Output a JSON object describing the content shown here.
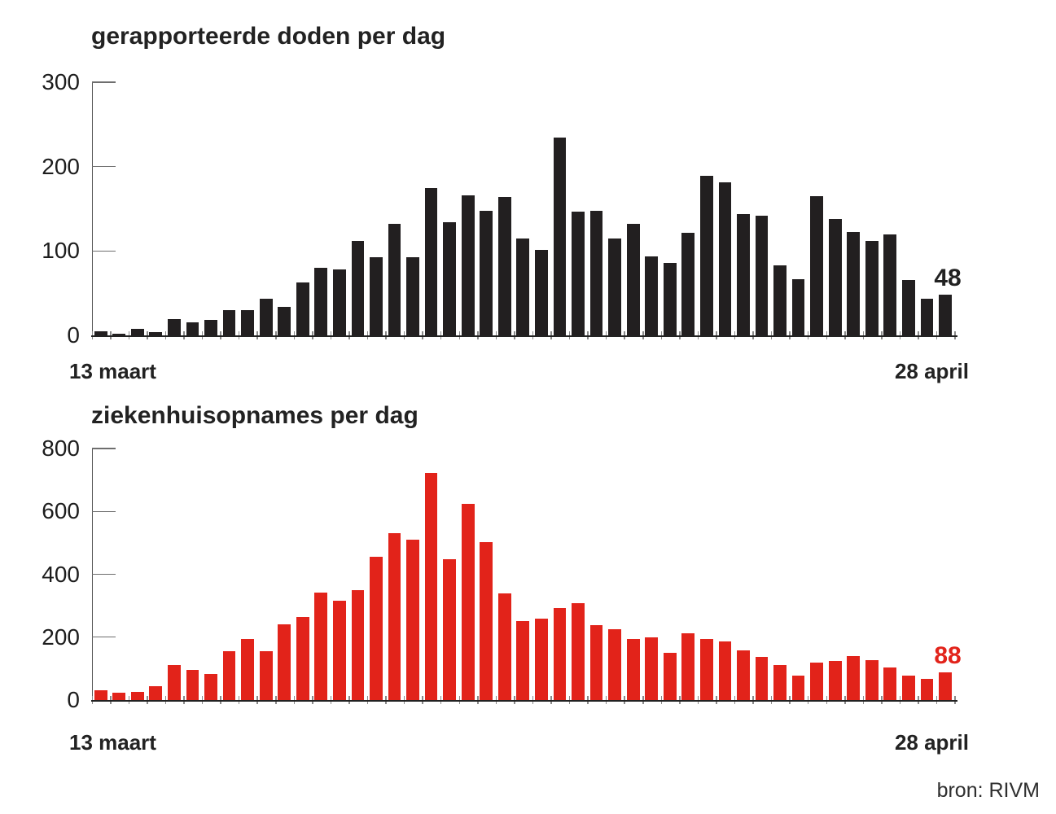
{
  "source": "bron: RIVM",
  "colors": {
    "deaths_bar": "#221f20",
    "admissions_bar": "#e2231a",
    "text_dark": "#222222",
    "axis_gray": "#555555",
    "tick_gray": "#8a8a8a"
  },
  "chart_data": [
    {
      "type": "bar",
      "title": "gerapporteerde doden per dag",
      "x_start_label": "13 maart",
      "x_end_label": "28 april",
      "last_value_label": "48",
      "bar_color": "#221f20",
      "label_color": "#222222",
      "ylim": [
        0,
        300
      ],
      "yticks": [
        0,
        100,
        200,
        300
      ],
      "grid": false,
      "values": [
        5,
        2,
        8,
        4,
        19,
        15,
        18,
        30,
        30,
        43,
        34,
        63,
        80,
        78,
        112,
        93,
        132,
        93,
        175,
        134,
        166,
        148,
        164,
        115,
        101,
        234,
        147,
        148,
        115,
        132,
        94,
        86,
        122,
        189,
        181,
        144,
        142,
        83,
        67,
        165,
        138,
        123,
        112,
        120,
        66,
        43,
        48
      ]
    },
    {
      "type": "bar",
      "title": "ziekenhuisopnames per dag",
      "x_start_label": "13 maart",
      "x_end_label": "28 april",
      "last_value_label": "88",
      "bar_color": "#e2231a",
      "label_color": "#e2231a",
      "ylim": [
        0,
        800
      ],
      "yticks": [
        0,
        200,
        400,
        600,
        800
      ],
      "grid": false,
      "values": [
        30,
        23,
        26,
        44,
        111,
        96,
        84,
        155,
        195,
        155,
        241,
        265,
        341,
        315,
        350,
        455,
        532,
        511,
        722,
        447,
        625,
        502,
        338,
        252,
        260,
        292,
        307,
        237,
        224,
        193,
        199,
        150,
        212,
        195,
        186,
        158,
        136,
        112,
        78,
        120,
        125,
        139,
        127,
        103,
        77,
        68,
        88
      ]
    }
  ]
}
